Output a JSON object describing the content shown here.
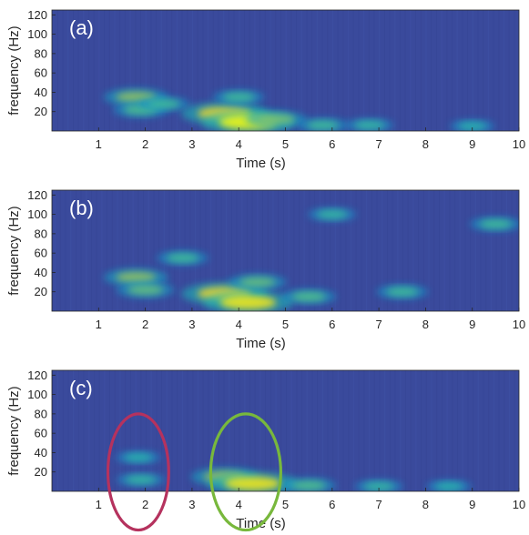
{
  "figure": {
    "colors": {
      "background": "#3a4a9c",
      "ellipse_red": "#b5325e",
      "ellipse_green": "#78b83c"
    }
  },
  "chart_data": [
    {
      "type": "heatmap",
      "panel_label": "(a)",
      "xlabel": "Time (s)",
      "ylabel": "frequency (Hz)",
      "xlim": [
        0,
        10
      ],
      "ylim": [
        0,
        125
      ],
      "xticks": [
        1,
        2,
        3,
        4,
        5,
        6,
        7,
        8,
        9,
        10
      ],
      "yticks": [
        20,
        40,
        60,
        80,
        100,
        120
      ],
      "colormap": "parula",
      "hotspots": [
        {
          "t": 1.8,
          "f": 35,
          "intensity": 0.55
        },
        {
          "t": 1.9,
          "f": 22,
          "intensity": 0.4
        },
        {
          "t": 2.4,
          "f": 28,
          "intensity": 0.35
        },
        {
          "t": 3.7,
          "f": 18,
          "intensity": 0.9
        },
        {
          "t": 4.2,
          "f": 9,
          "intensity": 1.0
        },
        {
          "t": 4.0,
          "f": 35,
          "intensity": 0.35
        },
        {
          "t": 4.8,
          "f": 12,
          "intensity": 0.5
        },
        {
          "t": 5.8,
          "f": 6,
          "intensity": 0.35
        },
        {
          "t": 6.8,
          "f": 6,
          "intensity": 0.3
        },
        {
          "t": 9.0,
          "f": 5,
          "intensity": 0.25
        }
      ]
    },
    {
      "type": "heatmap",
      "panel_label": "(b)",
      "xlabel": "Time (s)",
      "ylabel": "frequency (Hz)",
      "xlim": [
        0,
        10
      ],
      "ylim": [
        0,
        125
      ],
      "xticks": [
        1,
        2,
        3,
        4,
        5,
        6,
        7,
        8,
        9,
        10
      ],
      "yticks": [
        20,
        40,
        60,
        80,
        100,
        120
      ],
      "colormap": "parula",
      "hotspots": [
        {
          "t": 1.8,
          "f": 35,
          "intensity": 0.55
        },
        {
          "t": 2.0,
          "f": 22,
          "intensity": 0.45
        },
        {
          "t": 3.7,
          "f": 18,
          "intensity": 0.9
        },
        {
          "t": 4.2,
          "f": 9,
          "intensity": 0.95
        },
        {
          "t": 4.4,
          "f": 30,
          "intensity": 0.45
        },
        {
          "t": 2.8,
          "f": 55,
          "intensity": 0.35
        },
        {
          "t": 5.5,
          "f": 15,
          "intensity": 0.4
        },
        {
          "t": 7.5,
          "f": 20,
          "intensity": 0.35
        },
        {
          "t": 9.5,
          "f": 90,
          "intensity": 0.35
        },
        {
          "t": 6.0,
          "f": 100,
          "intensity": 0.3
        }
      ]
    },
    {
      "type": "heatmap",
      "panel_label": "(c)",
      "xlabel": "Time (s)",
      "ylabel": "frequency (Hz)",
      "xlim": [
        0,
        10
      ],
      "ylim": [
        0,
        125
      ],
      "xticks": [
        1,
        2,
        3,
        4,
        5,
        6,
        7,
        8,
        9,
        10
      ],
      "yticks": [
        20,
        40,
        60,
        80,
        100,
        120
      ],
      "colormap": "parula",
      "hotspots": [
        {
          "t": 1.85,
          "f": 35,
          "intensity": 0.25
        },
        {
          "t": 1.9,
          "f": 12,
          "intensity": 0.3
        },
        {
          "t": 3.7,
          "f": 15,
          "intensity": 0.6
        },
        {
          "t": 4.3,
          "f": 8,
          "intensity": 0.95
        },
        {
          "t": 5.5,
          "f": 6,
          "intensity": 0.4
        },
        {
          "t": 7.0,
          "f": 5,
          "intensity": 0.3
        },
        {
          "t": 8.5,
          "f": 5,
          "intensity": 0.25
        }
      ],
      "annotations": [
        {
          "shape": "ellipse",
          "color": "red",
          "t_center": 1.85,
          "f_center": 20,
          "t_radius": 0.65,
          "f_radius": 60
        },
        {
          "shape": "ellipse",
          "color": "green",
          "t_center": 4.15,
          "f_center": 20,
          "t_radius": 0.75,
          "f_radius": 60
        }
      ]
    }
  ]
}
